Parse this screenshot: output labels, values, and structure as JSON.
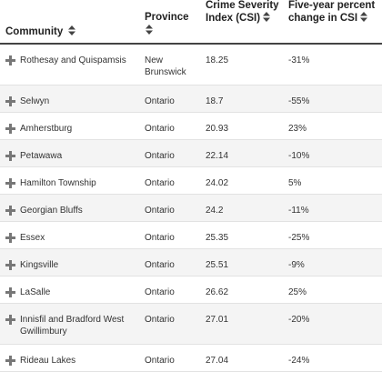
{
  "table": {
    "headers": {
      "community": "Community",
      "province": "Province",
      "csi": "Crime Severity Index (CSI)",
      "change": "Five-year percent change in CSI"
    },
    "rows": [
      {
        "community": "Rothesay and Quispamsis",
        "province": "New Brunswick",
        "csi": "18.25",
        "change": "-31%"
      },
      {
        "community": "Selwyn",
        "province": "Ontario",
        "csi": "18.7",
        "change": "-55%"
      },
      {
        "community": "Amherstburg",
        "province": "Ontario",
        "csi": "20.93",
        "change": "23%"
      },
      {
        "community": "Petawawa",
        "province": "Ontario",
        "csi": "22.14",
        "change": "-10%"
      },
      {
        "community": "Hamilton Township",
        "province": "Ontario",
        "csi": "24.02",
        "change": "5%"
      },
      {
        "community": "Georgian Bluffs",
        "province": "Ontario",
        "csi": "24.2",
        "change": "-11%"
      },
      {
        "community": "Essex",
        "province": "Ontario",
        "csi": "25.35",
        "change": "-25%"
      },
      {
        "community": "Kingsville",
        "province": "Ontario",
        "csi": "25.51",
        "change": "-9%"
      },
      {
        "community": "LaSalle",
        "province": "Ontario",
        "csi": "26.62",
        "change": "25%"
      },
      {
        "community": "Innisfil and Bradford West Gwillimbury",
        "province": "Ontario",
        "csi": "27.01",
        "change": "-20%"
      },
      {
        "community": "Rideau Lakes",
        "province": "Ontario",
        "csi": "27.04",
        "change": "-24%"
      }
    ]
  }
}
